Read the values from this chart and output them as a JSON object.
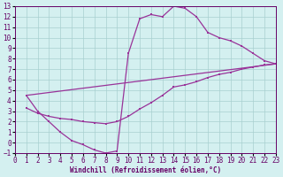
{
  "xlabel": "Windchill (Refroidissement éolien,°C)",
  "xlim": [
    0,
    23
  ],
  "ylim": [
    -1,
    13
  ],
  "xticks": [
    0,
    1,
    2,
    3,
    4,
    5,
    6,
    7,
    8,
    9,
    10,
    11,
    12,
    13,
    14,
    15,
    16,
    17,
    18,
    19,
    20,
    21,
    22,
    23
  ],
  "yticks": [
    -1,
    0,
    1,
    2,
    3,
    4,
    5,
    6,
    7,
    8,
    9,
    10,
    11,
    12,
    13
  ],
  "background_color": "#d4f0f0",
  "grid_color": "#a8d0d0",
  "line_color": "#993399",
  "curve1_x": [
    1,
    2,
    3,
    4,
    5,
    6,
    7,
    8,
    9,
    10,
    11,
    12,
    13,
    14,
    15,
    16,
    17,
    18,
    19,
    20,
    21,
    22,
    23
  ],
  "curve1_y": [
    4.5,
    3.0,
    2.0,
    1.0,
    0.2,
    -0.2,
    -0.7,
    -1.0,
    -0.8,
    8.5,
    11.8,
    12.2,
    12.0,
    13.0,
    12.8,
    12.0,
    10.5,
    10.0,
    9.7,
    9.2,
    8.5,
    7.8,
    7.5
  ],
  "curve2_x": [
    1,
    2,
    3,
    4,
    5,
    6,
    7,
    8,
    9,
    10,
    11,
    12,
    13,
    14,
    15,
    16,
    17,
    18,
    19,
    20,
    21,
    22,
    23
  ],
  "curve2_y": [
    3.3,
    2.8,
    2.5,
    2.3,
    2.2,
    2.0,
    1.9,
    1.8,
    2.0,
    2.5,
    3.2,
    3.8,
    4.5,
    5.3,
    5.5,
    5.8,
    6.2,
    6.5,
    6.7,
    7.0,
    7.2,
    7.4,
    7.5
  ],
  "curve3_x": [
    1,
    23
  ],
  "curve3_y": [
    4.5,
    7.5
  ]
}
